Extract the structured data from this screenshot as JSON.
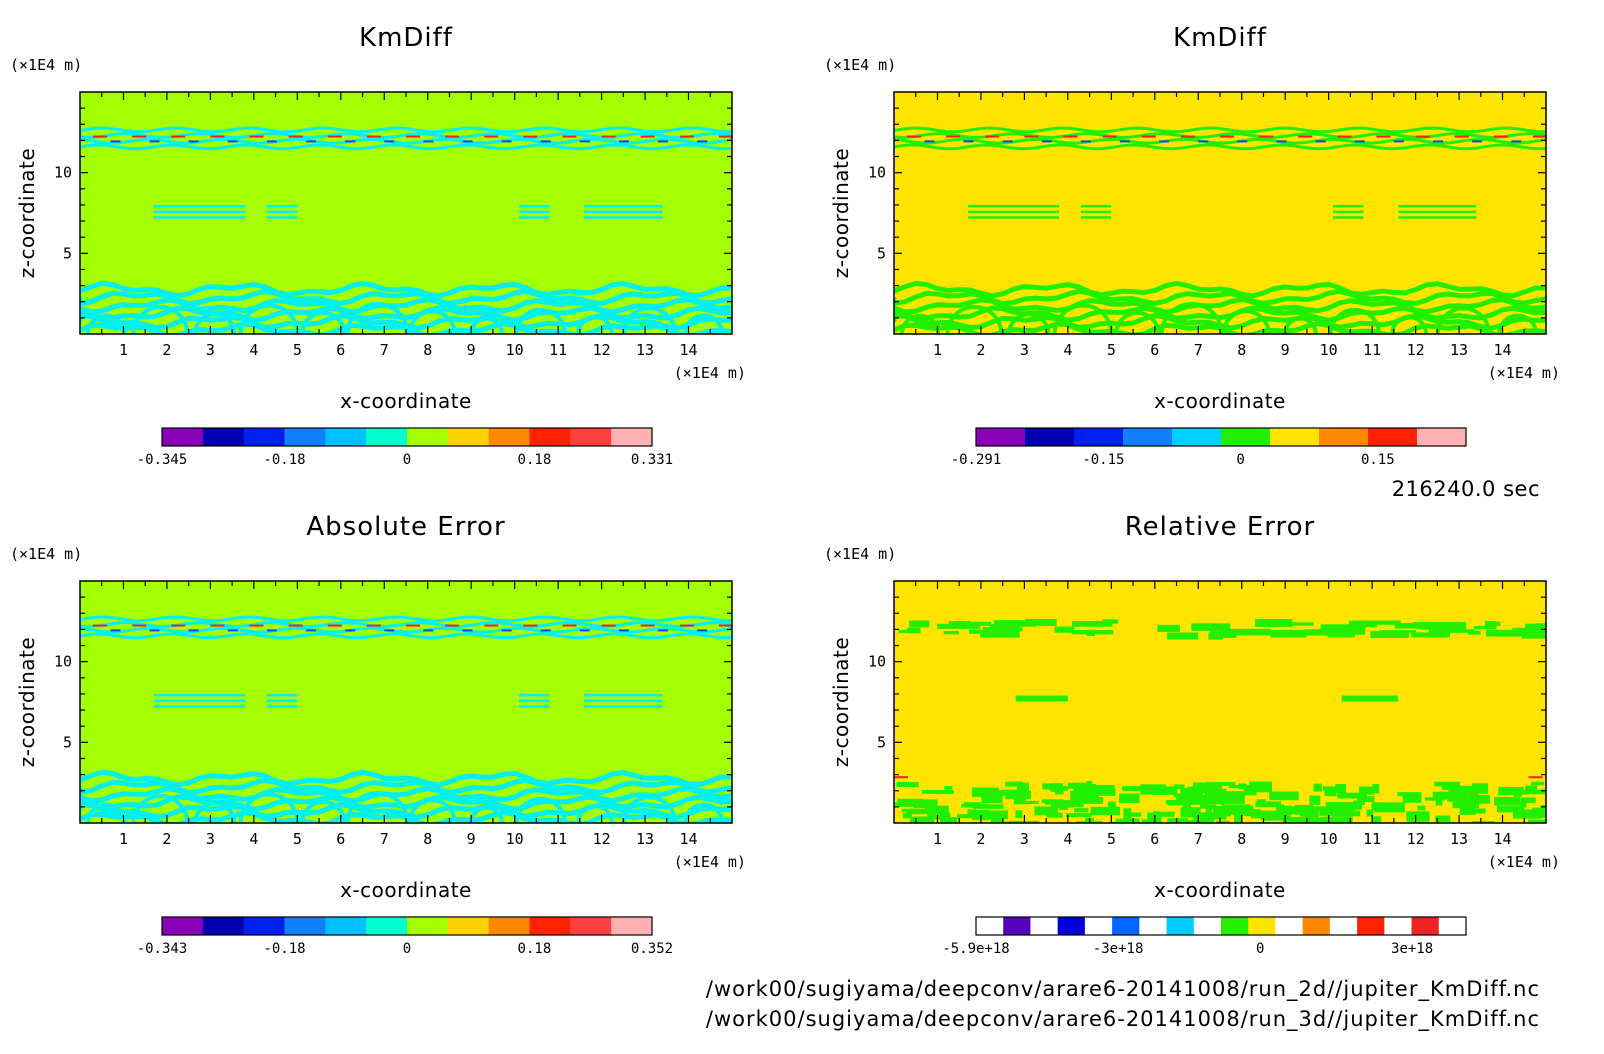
{
  "colors": {
    "background": "#a4ff00",
    "background_alt": "#ffe400",
    "band_cyan": "#00f0f0",
    "band_green": "#22ee00",
    "accent_red": "#ee2222",
    "accent_blue": "#1144ee"
  },
  "chart_data": [
    {
      "type": "heatmap",
      "title": "KmDiff",
      "xlabel": "x-coordinate",
      "ylabel": "z-coordinate",
      "x_unit": "(×1E4 m)",
      "y_unit": "(×1E4 m)",
      "xlim": [
        0,
        15
      ],
      "ylim": [
        0,
        15
      ],
      "xticks": [
        "1",
        "2",
        "3",
        "4",
        "5",
        "6",
        "7",
        "8",
        "9",
        "10",
        "11",
        "12",
        "13",
        "14"
      ],
      "yticks": [
        "5",
        "10"
      ],
      "background_color": "#a4ff00",
      "band_color": "#00f0f0",
      "colorbar": {
        "colors": [
          "#8a00b8",
          "#0000b0",
          "#0020ee",
          "#1080ff",
          "#00c0ff",
          "#00ffcc",
          "#a4ff00",
          "#ffd000",
          "#ff8800",
          "#ff2200",
          "#ff4040",
          "#ffb0b0"
        ],
        "labels": [
          "-0.345",
          "-0.18",
          "0",
          "0.18",
          "0.331"
        ]
      }
    },
    {
      "type": "heatmap",
      "title": "KmDiff",
      "xlabel": "x-coordinate",
      "ylabel": "z-coordinate",
      "x_unit": "(×1E4 m)",
      "y_unit": "(×1E4 m)",
      "xlim": [
        0,
        15
      ],
      "ylim": [
        0,
        15
      ],
      "xticks": [
        "1",
        "2",
        "3",
        "4",
        "5",
        "6",
        "7",
        "8",
        "9",
        "10",
        "11",
        "12",
        "13",
        "14"
      ],
      "yticks": [
        "5",
        "10"
      ],
      "background_color": "#ffe400",
      "band_color": "#22ee00",
      "colorbar": {
        "colors": [
          "#8a00b8",
          "#0000b0",
          "#0020ee",
          "#1080ff",
          "#00d0ff",
          "#22ee00",
          "#ffe400",
          "#ff8800",
          "#ff2200",
          "#ffb0b0"
        ],
        "labels": [
          "-0.291",
          "-0.15",
          "0",
          "0.15"
        ]
      }
    },
    {
      "type": "heatmap",
      "title": "Absolute Error",
      "xlabel": "x-coordinate",
      "ylabel": "z-coordinate",
      "x_unit": "(×1E4 m)",
      "y_unit": "(×1E4 m)",
      "xlim": [
        0,
        15
      ],
      "ylim": [
        0,
        15
      ],
      "xticks": [
        "1",
        "2",
        "3",
        "4",
        "5",
        "6",
        "7",
        "8",
        "9",
        "10",
        "11",
        "12",
        "13",
        "14"
      ],
      "yticks": [
        "5",
        "10"
      ],
      "background_color": "#a4ff00",
      "band_color": "#00f0f0",
      "colorbar": {
        "colors": [
          "#8a00b8",
          "#0000b0",
          "#0020ee",
          "#1080ff",
          "#00c0ff",
          "#00ffcc",
          "#a4ff00",
          "#ffd000",
          "#ff8800",
          "#ff2200",
          "#ff4040",
          "#ffb0b0"
        ],
        "labels": [
          "-0.343",
          "-0.18",
          "0",
          "0.18",
          "0.352"
        ]
      }
    },
    {
      "type": "heatmap",
      "title": "Relative Error",
      "xlabel": "x-coordinate",
      "ylabel": "z-coordinate",
      "x_unit": "(×1E4 m)",
      "y_unit": "(×1E4 m)",
      "xlim": [
        0,
        15
      ],
      "ylim": [
        0,
        15
      ],
      "xticks": [
        "1",
        "2",
        "3",
        "4",
        "5",
        "6",
        "7",
        "8",
        "9",
        "10",
        "11",
        "12",
        "13",
        "14"
      ],
      "yticks": [
        "5",
        "10"
      ],
      "background_color": "#ffe400",
      "band_color": "#22ee00",
      "colorbar": {
        "colors": [
          "#ffffff",
          "#5500bb",
          "#ffffff",
          "#0000dd",
          "#ffffff",
          "#0066ff",
          "#ffffff",
          "#00ccff",
          "#ffffff",
          "#22ee00",
          "#ffe400",
          "#ffffff",
          "#ff8800",
          "#ffffff",
          "#ff2200",
          "#ffffff",
          "#ee2222",
          "#ffffff"
        ],
        "labels": [
          "-5.9e+18",
          "-3e+18",
          "0",
          "3e+18"
        ]
      }
    }
  ],
  "time_label": "216240.0 sec",
  "file_paths": [
    "/work00/sugiyama/deepconv/arare6-20141008/run_2d//jupiter_KmDiff.nc",
    "/work00/sugiyama/deepconv/arare6-20141008/run_3d//jupiter_KmDiff.nc"
  ]
}
